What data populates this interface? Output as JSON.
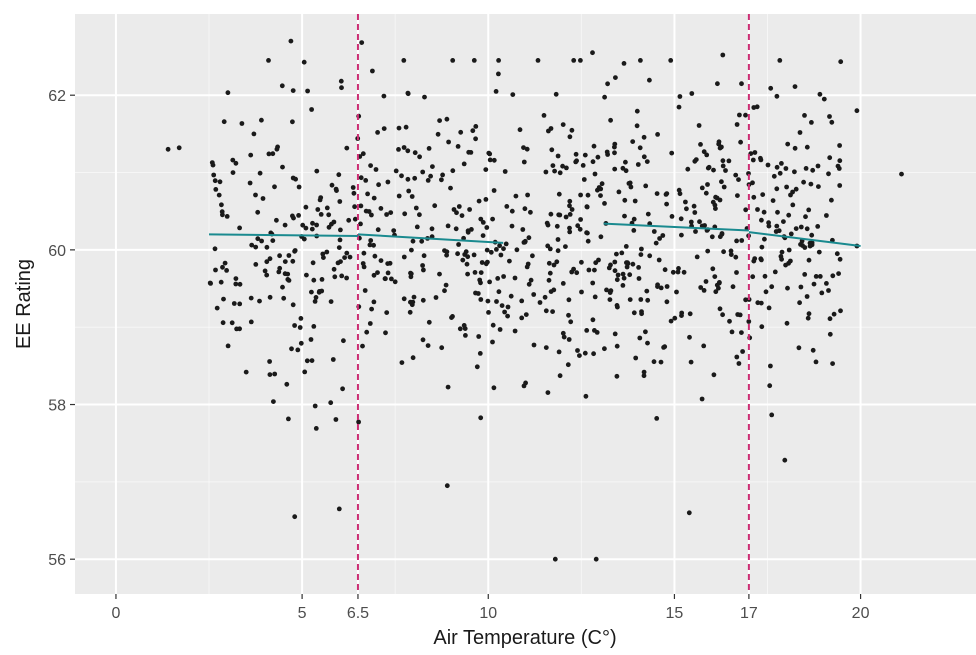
{
  "chart_data": {
    "type": "scatter",
    "title": "",
    "xlabel": "Air Temperature (C°)",
    "ylabel": "EE Rating",
    "xlim": [
      -1.1,
      23.1
    ],
    "ylim": [
      55.55,
      63.05
    ],
    "x_major_ticks": [
      0,
      5,
      6.5,
      10,
      15,
      17,
      20
    ],
    "x_minor_ticks": [
      2.5,
      7.5,
      12.5,
      17.5
    ],
    "y_major_ticks": [
      56,
      58,
      60,
      62
    ],
    "y_minor_ticks": [
      57,
      59,
      61
    ],
    "grid": true,
    "background": "#ebebeb",
    "colors": {
      "points": "#1a1a1a",
      "fit_line": "#1a8a8f",
      "breakpoint_line": "#cc2e74",
      "grid": "#ffffff"
    },
    "breakpoints": [
      6.5,
      17
    ],
    "fit_segments": [
      {
        "x": [
          2.5,
          6.5
        ],
        "y": [
          60.2,
          60.18
        ]
      },
      {
        "x": [
          6.5,
          10.4
        ],
        "y": [
          60.2,
          60.09
        ]
      },
      {
        "x": [
          13.1,
          17
        ],
        "y": [
          60.34,
          60.25
        ]
      },
      {
        "x": [
          17,
          20
        ],
        "y": [
          60.23,
          60.05
        ]
      }
    ],
    "points_seed": 20240517,
    "points_count": 900,
    "points_summary": {
      "x_range": [
        1.5,
        21.0
      ],
      "y_center": 60.2,
      "y_range": [
        56.0,
        62.75
      ]
    },
    "highlight_points": [
      {
        "x": 1.4,
        "y": 61.3
      },
      {
        "x": 1.7,
        "y": 61.32
      },
      {
        "x": 21.1,
        "y": 60.98
      },
      {
        "x": 4.7,
        "y": 62.7
      },
      {
        "x": 6.6,
        "y": 62.68
      },
      {
        "x": 11.8,
        "y": 56.0
      },
      {
        "x": 12.9,
        "y": 56.0
      },
      {
        "x": 15.4,
        "y": 56.6
      },
      {
        "x": 4.8,
        "y": 56.55
      },
      {
        "x": 12.8,
        "y": 62.55
      },
      {
        "x": 16.3,
        "y": 62.52
      },
      {
        "x": 19.9,
        "y": 61.8
      },
      {
        "x": 19.9,
        "y": 60.05
      },
      {
        "x": 8.9,
        "y": 56.95
      },
      {
        "x": 6.0,
        "y": 56.65
      }
    ]
  }
}
